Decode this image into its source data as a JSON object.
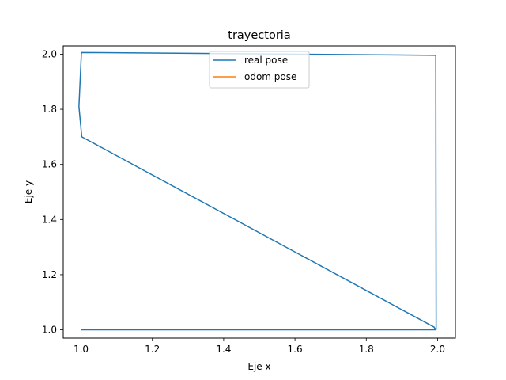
{
  "chart_data": {
    "type": "line",
    "title": "trayectoria",
    "xlabel": "Eje x",
    "ylabel": "Eje y",
    "xlim": [
      0.95,
      2.05
    ],
    "ylim": [
      0.97,
      2.03
    ],
    "xticks": [
      1.0,
      1.2,
      1.4,
      1.6,
      1.8,
      2.0
    ],
    "xtick_labels": [
      "1.0",
      "1.2",
      "1.4",
      "1.6",
      "1.8",
      "2.0"
    ],
    "yticks": [
      1.0,
      1.2,
      1.4,
      1.6,
      1.8,
      2.0
    ],
    "ytick_labels": [
      "1.0",
      "1.2",
      "1.4",
      "1.6",
      "1.8",
      "2.0"
    ],
    "grid": false,
    "legend_position": "upper center",
    "series": [
      {
        "name": "real pose",
        "color": "#1f77b4",
        "x": [
          1.0,
          1.995,
          1.99,
          1.002,
          0.994,
          1.001,
          1.995,
          1.996
        ],
        "y": [
          1.0,
          1.0,
          1.01,
          1.7,
          1.81,
          2.006,
          1.996,
          1.0
        ]
      },
      {
        "name": "odom pose",
        "color": "#ff7f0e",
        "x": [],
        "y": []
      }
    ]
  }
}
